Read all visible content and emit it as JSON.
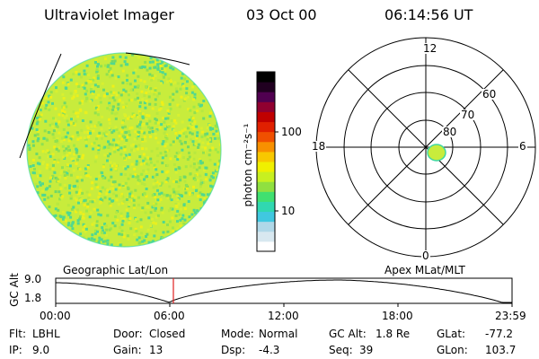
{
  "header": {
    "instrument": "Ultraviolet Imager",
    "date": "03 Oct 00",
    "time": "06:14:56 UT"
  },
  "colorbar": {
    "unit_label": "photon cm⁻²s⁻¹",
    "tick_100": "100",
    "tick_10": "10",
    "colors": [
      "#ffffff",
      "#d8e8f0",
      "#b0d8e8",
      "#40c8e0",
      "#30d8b0",
      "#40e070",
      "#90e040",
      "#c8f020",
      "#f0f000",
      "#f8c800",
      "#f89000",
      "#f05000",
      "#e02000",
      "#c00000",
      "#900030",
      "#500050",
      "#200020",
      "#000000"
    ]
  },
  "polar_plot": {
    "mlt_labels": {
      "top": "12",
      "left": "18",
      "right": "6",
      "bottom": "0"
    },
    "lat_labels": [
      "60",
      "70",
      "80"
    ]
  },
  "altitude_strip": {
    "left_title": "Geographic Lat/Lon",
    "right_title": "Apex MLat/MLT",
    "axis_label": "GC Alt",
    "y_ticks": [
      "9.0",
      "1.8"
    ],
    "x_ticks": [
      "00:00",
      "06:00",
      "12:00",
      "18:00",
      "23:59"
    ],
    "current_time_color": "#e02020"
  },
  "info": {
    "row1": [
      {
        "label": "Flt:",
        "value": "LBHL"
      },
      {
        "label": "Door:",
        "value": "Closed"
      },
      {
        "label": "Mode:",
        "value": "Normal"
      },
      {
        "label": "GC Alt:",
        "value": "1.8 Re"
      },
      {
        "label": "GLat:",
        "value": "-77.2"
      }
    ],
    "row2": [
      {
        "label": "IP:",
        "value": "9.0"
      },
      {
        "label": "Gain:",
        "value": "13"
      },
      {
        "label": "Dsp:",
        "value": "-4.3"
      },
      {
        "label": "Seq:",
        "value": "39"
      },
      {
        "label": "GLon:",
        "value": "103.7"
      }
    ]
  }
}
